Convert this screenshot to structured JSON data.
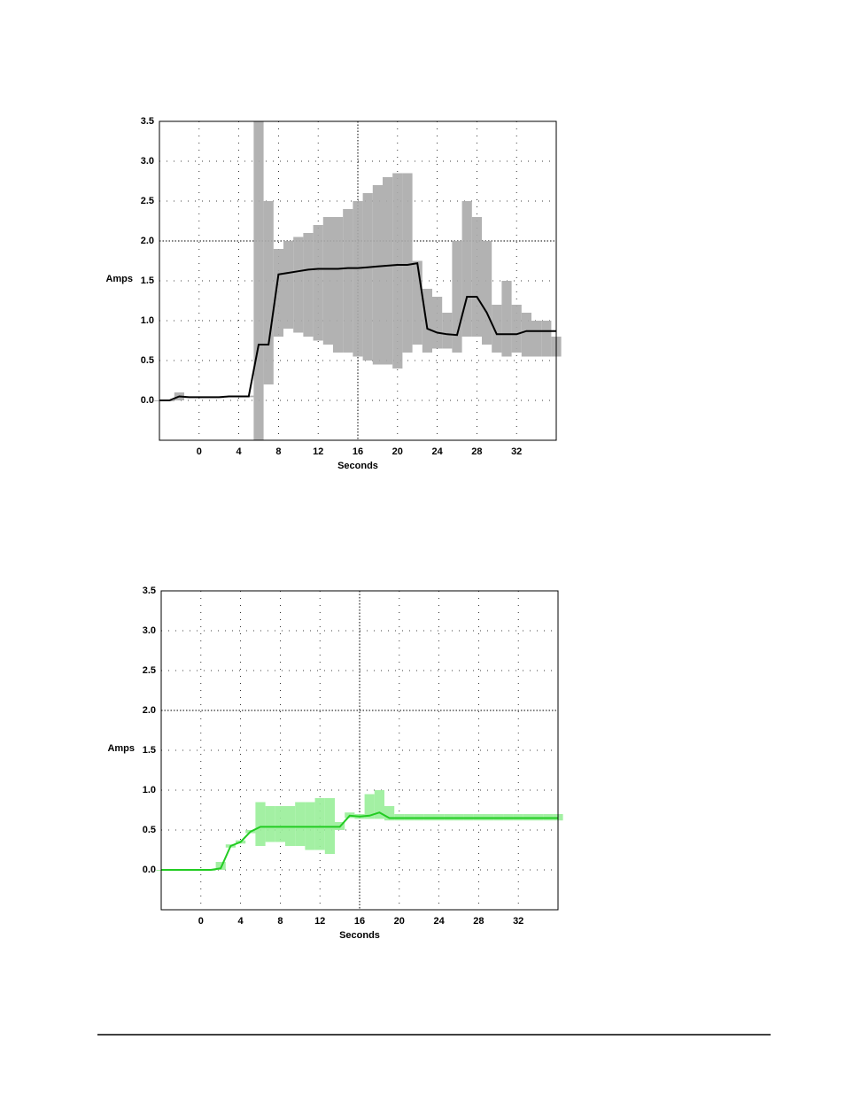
{
  "chart_data": [
    {
      "type": "line",
      "y_label": "Amps",
      "x_label": "Seconds",
      "xlim": [
        -4,
        36
      ],
      "ylim": [
        -0.5,
        3.5
      ],
      "xticks": [
        0,
        4,
        8,
        12,
        16,
        20,
        24,
        28,
        32
      ],
      "yticks": [
        {
          "value": 0,
          "label": "0.0"
        },
        0.5,
        {
          "value": 1,
          "label": "1.0"
        },
        1.5,
        {
          "value": 2,
          "label": "2.0"
        },
        2.5,
        {
          "value": 3,
          "label": "3.0"
        },
        3.5
      ],
      "grid": true,
      "x": [
        -4,
        -3,
        -2,
        -1,
        0,
        1,
        2,
        3,
        4,
        5,
        6,
        7,
        8,
        9,
        10,
        11,
        12,
        13,
        14,
        15,
        16,
        17,
        18,
        19,
        20,
        21,
        22,
        23,
        24,
        25,
        26,
        27,
        28,
        29,
        30,
        31,
        32,
        33,
        34,
        35,
        36
      ],
      "bands": [
        {
          "color": "#aaaaaa",
          "high": [
            0,
            0,
            0.1,
            0.05,
            0.05,
            0.05,
            0.05,
            0.05,
            0.05,
            0.06,
            3.5,
            2.5,
            1.9,
            2.0,
            2.05,
            2.1,
            2.2,
            2.3,
            2.3,
            2.4,
            2.5,
            2.6,
            2.7,
            2.8,
            2.85,
            2.85,
            1.75,
            1.4,
            1.3,
            1.1,
            2.0,
            2.5,
            2.3,
            2.0,
            1.2,
            1.5,
            1.2,
            1.1,
            1.0,
            1.0,
            0.8
          ],
          "low": [
            0,
            0,
            0,
            0.03,
            0.03,
            0.03,
            0.03,
            0.04,
            0.04,
            0.04,
            -0.5,
            0.2,
            0.8,
            0.9,
            0.85,
            0.8,
            0.75,
            0.7,
            0.6,
            0.6,
            0.55,
            0.5,
            0.45,
            0.45,
            0.4,
            0.6,
            0.7,
            0.6,
            0.65,
            0.65,
            0.6,
            0.8,
            0.8,
            0.7,
            0.6,
            0.55,
            0.6,
            0.55,
            0.55,
            0.55,
            0.55
          ]
        }
      ],
      "series": [
        {
          "color": "#000000",
          "values": [
            0,
            0,
            0.05,
            0.04,
            0.04,
            0.04,
            0.04,
            0.05,
            0.05,
            0.05,
            0.7,
            0.7,
            1.58,
            1.6,
            1.62,
            1.64,
            1.65,
            1.65,
            1.65,
            1.66,
            1.66,
            1.67,
            1.68,
            1.69,
            1.7,
            1.7,
            1.72,
            0.9,
            0.85,
            0.83,
            0.82,
            1.3,
            1.3,
            1.1,
            0.83,
            0.83,
            0.83,
            0.87,
            0.87,
            0.87,
            0.87
          ]
        }
      ]
    },
    {
      "type": "line",
      "y_label": "Amps",
      "x_label": "Seconds",
      "xlim": [
        -4,
        36
      ],
      "ylim": [
        -0.5,
        3.5
      ],
      "xticks": [
        0,
        4,
        8,
        12,
        16,
        20,
        24,
        28,
        32
      ],
      "yticks": [
        {
          "value": 0,
          "label": "0.0"
        },
        0.5,
        {
          "value": 1,
          "label": "1.0"
        },
        1.5,
        {
          "value": 2,
          "label": "2.0"
        },
        2.5,
        {
          "value": 3,
          "label": "3.0"
        },
        3.5
      ],
      "grid": true,
      "x": [
        -4,
        -3,
        -2,
        -1,
        0,
        1,
        2,
        3,
        4,
        5,
        6,
        7,
        8,
        9,
        10,
        11,
        12,
        13,
        14,
        15,
        16,
        17,
        18,
        19,
        20,
        21,
        22,
        23,
        24,
        25,
        26,
        27,
        28,
        29,
        30,
        31,
        32,
        33,
        34,
        35,
        36
      ],
      "bands": [
        {
          "color": "#99ee99",
          "high": [
            0,
            0,
            0,
            0,
            0,
            0,
            0.1,
            0.32,
            0.37,
            0.5,
            0.85,
            0.8,
            0.8,
            0.8,
            0.85,
            0.85,
            0.9,
            0.9,
            0.6,
            0.72,
            0.7,
            0.95,
            1.0,
            0.8,
            0.7,
            0.7,
            0.7,
            0.7,
            0.7,
            0.7,
            0.7,
            0.7,
            0.7,
            0.7,
            0.7,
            0.7,
            0.7,
            0.7,
            0.7,
            0.7,
            0.7
          ],
          "low": [
            0,
            0,
            0,
            0,
            0,
            0,
            0,
            0.28,
            0.33,
            0.46,
            0.3,
            0.35,
            0.35,
            0.3,
            0.3,
            0.25,
            0.25,
            0.2,
            0.5,
            0.65,
            0.64,
            0.64,
            0.64,
            0.62,
            0.62,
            0.62,
            0.62,
            0.62,
            0.62,
            0.62,
            0.62,
            0.62,
            0.62,
            0.62,
            0.62,
            0.62,
            0.62,
            0.62,
            0.62,
            0.62,
            0.62
          ]
        }
      ],
      "series": [
        {
          "color": "#22cc22",
          "values": [
            0,
            0,
            0,
            0,
            0,
            0,
            0.02,
            0.3,
            0.35,
            0.48,
            0.54,
            0.54,
            0.54,
            0.54,
            0.54,
            0.54,
            0.54,
            0.54,
            0.54,
            0.68,
            0.67,
            0.68,
            0.72,
            0.65,
            0.65,
            0.65,
            0.65,
            0.65,
            0.65,
            0.65,
            0.65,
            0.65,
            0.65,
            0.65,
            0.65,
            0.65,
            0.65,
            0.65,
            0.65,
            0.65,
            0.65
          ]
        }
      ]
    }
  ]
}
